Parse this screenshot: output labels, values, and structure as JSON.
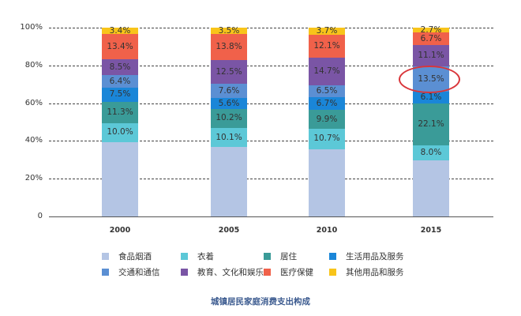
{
  "chart_data": {
    "type": "bar",
    "stacked": true,
    "title": "城镇居民家庭消费支出构成",
    "xlabel": "",
    "ylabel": "",
    "ylim": [
      0,
      100
    ],
    "y_ticks": [
      "0",
      "20%",
      "40%",
      "60%",
      "80%",
      "100%"
    ],
    "grid": "dashed horizontal",
    "legend_position": "bottom",
    "categories": [
      "2000",
      "2005",
      "2010",
      "2015"
    ],
    "series": [
      {
        "name": "食品烟酒",
        "color": "#b4c5e4",
        "values": [
          39.5,
          36.7,
          35.7,
          29.8
        ],
        "labels": [
          "",
          "",
          "",
          ""
        ]
      },
      {
        "name": "衣着",
        "color": "#5cc8d7",
        "values": [
          10.0,
          10.1,
          10.7,
          8.0
        ],
        "labels": [
          "10.0%",
          "10.1%",
          "10.7%",
          "8.0%"
        ]
      },
      {
        "name": "居住",
        "color": "#3a9b98",
        "values": [
          11.3,
          10.2,
          9.9,
          22.1
        ],
        "labels": [
          "11.3%",
          "10.2%",
          "9.9%",
          "22.1%"
        ]
      },
      {
        "name": "生活用品及服务",
        "color": "#1a86d8",
        "values": [
          7.5,
          5.6,
          6.7,
          6.1
        ],
        "labels": [
          "7.5%",
          "5.6%",
          "6.7%",
          "6.1%"
        ]
      },
      {
        "name": "交通和通信",
        "color": "#5b8fd3",
        "values": [
          6.4,
          7.6,
          6.5,
          13.5
        ],
        "labels": [
          "6.4%",
          "7.6%",
          "6.5%",
          "13.5%"
        ]
      },
      {
        "name": "教育、文化和娱乐",
        "color": "#7a55a5",
        "values": [
          8.5,
          12.5,
          14.7,
          11.1
        ],
        "labels": [
          "8.5%",
          "12.5%",
          "14.7%",
          "11.1%"
        ]
      },
      {
        "name": "医疗保健",
        "color": "#f0614a",
        "values": [
          13.4,
          13.8,
          12.1,
          6.7
        ],
        "labels": [
          "13.4%",
          "13.8%",
          "12.1%",
          "6.7%"
        ]
      },
      {
        "name": "其他用品和服务",
        "color": "#f8c41a",
        "values": [
          3.4,
          3.5,
          3.7,
          2.7
        ],
        "labels": [
          "3.4%",
          "3.5%",
          "3.7%",
          "2.7%"
        ]
      }
    ],
    "annotations": [
      {
        "type": "ellipse",
        "color": "#d9353a",
        "target": "2015 交通和通信 13.5%"
      }
    ]
  }
}
